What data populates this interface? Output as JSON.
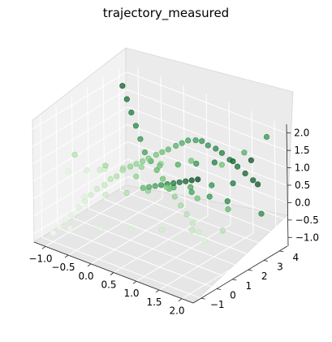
{
  "chart_data": {
    "type": "scatter3d",
    "title": "trajectory_measured",
    "xlabel": "",
    "ylabel": "",
    "zlabel": "",
    "xlim": [
      -1.25,
      2.25
    ],
    "ylim": [
      -1.5,
      4.5
    ],
    "zlim": [
      -1.25,
      2.25
    ],
    "x_ticks": [
      "−1.0",
      "−0.5",
      "0.0",
      "0.5",
      "1.0",
      "1.5",
      "2.0"
    ],
    "y_ticks": [
      "−1",
      "0",
      "1",
      "2",
      "3",
      "4"
    ],
    "z_ticks": [
      "−1.0",
      "−0.5",
      "0.0",
      "0.5",
      "1.0",
      "1.5",
      "2.0"
    ],
    "colormap": [
      "#f7fcf5",
      "#c7e9c0",
      "#74c476",
      "#238b45",
      "#00441b"
    ],
    "grid": true,
    "points": [
      [
        -1.0,
        -1.0,
        -1.0,
        0.02
      ],
      [
        -0.9,
        -0.9,
        -0.8,
        0.05
      ],
      [
        -0.8,
        -0.8,
        -0.6,
        0.08
      ],
      [
        -0.7,
        -0.7,
        -0.4,
        0.1
      ],
      [
        -0.6,
        -0.5,
        -0.2,
        0.13
      ],
      [
        -0.5,
        -0.4,
        0.0,
        0.16
      ],
      [
        -0.4,
        -0.3,
        0.2,
        0.19
      ],
      [
        -0.3,
        -0.2,
        0.4,
        0.22
      ],
      [
        -0.2,
        0.0,
        0.5,
        0.25
      ],
      [
        -0.1,
        0.1,
        0.7,
        0.28
      ],
      [
        0.0,
        0.2,
        0.8,
        0.31
      ],
      [
        0.1,
        0.3,
        1.0,
        0.34
      ],
      [
        0.2,
        0.5,
        1.1,
        0.37
      ],
      [
        0.3,
        0.6,
        1.2,
        0.4
      ],
      [
        0.4,
        0.7,
        1.3,
        0.43
      ],
      [
        0.5,
        0.8,
        1.4,
        0.46
      ],
      [
        0.6,
        1.0,
        1.5,
        0.49
      ],
      [
        0.7,
        1.1,
        1.6,
        0.52
      ],
      [
        0.8,
        1.2,
        1.7,
        0.55
      ],
      [
        0.9,
        1.4,
        1.8,
        0.58
      ],
      [
        1.0,
        1.5,
        1.9,
        0.61
      ],
      [
        1.1,
        1.6,
        2.0,
        0.64
      ],
      [
        1.2,
        1.8,
        2.0,
        0.67
      ],
      [
        1.3,
        1.9,
        2.0,
        0.7
      ],
      [
        1.4,
        2.0,
        1.9,
        0.73
      ],
      [
        1.5,
        2.2,
        1.8,
        0.76
      ],
      [
        1.6,
        2.3,
        1.7,
        0.79
      ],
      [
        1.7,
        2.5,
        1.5,
        0.82
      ],
      [
        1.8,
        2.7,
        1.3,
        0.85
      ],
      [
        1.9,
        2.9,
        1.1,
        0.88
      ],
      [
        2.0,
        3.1,
        0.9,
        0.91
      ],
      [
        2.0,
        3.4,
        0.7,
        0.94
      ],
      [
        -1.0,
        3.5,
        2.0,
        0.9
      ],
      [
        -0.8,
        3.2,
        1.8,
        0.85
      ],
      [
        -0.6,
        2.9,
        1.6,
        0.8
      ],
      [
        -0.4,
        2.6,
        1.4,
        0.75
      ],
      [
        -0.2,
        2.3,
        1.2,
        0.7
      ],
      [
        0.0,
        2.0,
        1.0,
        0.65
      ],
      [
        0.2,
        1.8,
        0.9,
        0.6
      ],
      [
        0.4,
        1.6,
        0.8,
        0.55
      ],
      [
        0.6,
        1.4,
        0.7,
        0.5
      ],
      [
        0.8,
        1.2,
        0.6,
        0.45
      ],
      [
        1.0,
        1.0,
        0.5,
        0.4
      ],
      [
        1.2,
        0.8,
        0.4,
        0.35
      ],
      [
        1.4,
        0.6,
        0.3,
        0.3
      ],
      [
        1.6,
        0.4,
        0.2,
        0.25
      ],
      [
        1.8,
        0.2,
        0.1,
        0.2
      ],
      [
        2.0,
        0.0,
        0.0,
        0.15
      ],
      [
        -1.0,
        0.0,
        0.5,
        0.1
      ],
      [
        -0.7,
        0.3,
        0.6,
        0.15
      ],
      [
        -0.4,
        0.6,
        0.7,
        0.2
      ],
      [
        -0.1,
        0.9,
        0.8,
        0.3
      ],
      [
        0.2,
        1.2,
        0.9,
        0.4
      ],
      [
        0.5,
        1.5,
        1.0,
        0.5
      ],
      [
        0.8,
        1.8,
        1.1,
        0.6
      ],
      [
        1.1,
        2.1,
        1.2,
        0.7
      ],
      [
        1.4,
        2.4,
        1.3,
        0.8
      ],
      [
        1.7,
        2.7,
        1.4,
        0.9
      ],
      [
        2.0,
        3.0,
        1.5,
        0.95
      ],
      [
        -1.0,
        1.0,
        -0.5,
        0.12
      ],
      [
        -0.6,
        1.2,
        -0.3,
        0.22
      ],
      [
        -0.2,
        1.4,
        -0.1,
        0.32
      ],
      [
        0.2,
        1.6,
        0.1,
        0.42
      ],
      [
        0.6,
        1.8,
        0.3,
        0.52
      ],
      [
        1.0,
        2.0,
        0.5,
        0.62
      ],
      [
        1.4,
        2.2,
        0.7,
        0.72
      ],
      [
        1.8,
        2.4,
        0.9,
        0.82
      ],
      [
        -0.5,
        -1.0,
        1.5,
        0.3
      ],
      [
        0.0,
        -0.5,
        1.3,
        0.35
      ],
      [
        0.5,
        0.0,
        1.1,
        0.4
      ],
      [
        1.0,
        0.5,
        0.9,
        0.45
      ],
      [
        1.5,
        1.0,
        0.7,
        0.5
      ],
      [
        2.0,
        1.5,
        0.5,
        0.55
      ],
      [
        0.0,
        3.8,
        -0.5,
        0.6
      ],
      [
        0.5,
        3.5,
        -0.3,
        0.65
      ],
      [
        1.0,
        3.2,
        -0.1,
        0.7
      ],
      [
        1.5,
        2.9,
        0.1,
        0.75
      ],
      [
        -1.0,
        2.0,
        0.0,
        0.2
      ],
      [
        -0.5,
        2.5,
        0.2,
        0.3
      ],
      [
        0.0,
        3.0,
        0.4,
        0.4
      ],
      [
        0.5,
        3.5,
        0.6,
        0.5
      ],
      [
        0.3,
        1.0,
        0.4,
        0.55
      ],
      [
        0.4,
        1.1,
        0.45,
        0.6
      ],
      [
        0.5,
        1.2,
        0.5,
        0.65
      ],
      [
        0.6,
        1.3,
        0.55,
        0.7
      ],
      [
        0.7,
        1.4,
        0.6,
        0.75
      ],
      [
        0.8,
        1.5,
        0.65,
        0.8
      ],
      [
        0.9,
        1.6,
        0.7,
        0.85
      ],
      [
        1.0,
        1.7,
        0.75,
        0.9
      ],
      [
        1.1,
        1.8,
        0.8,
        0.95
      ],
      [
        1.2,
        1.9,
        0.85,
        1.0
      ],
      [
        -0.8,
        -0.5,
        -0.9,
        0.05
      ],
      [
        -0.3,
        0.0,
        -0.8,
        0.1
      ],
      [
        0.2,
        0.5,
        -0.7,
        0.15
      ],
      [
        0.7,
        1.0,
        -0.6,
        0.2
      ],
      [
        1.2,
        1.5,
        -0.5,
        0.25
      ],
      [
        1.7,
        2.0,
        -0.4,
        0.3
      ],
      [
        2.0,
        4.0,
        1.9,
        0.7
      ],
      [
        1.5,
        4.0,
        1.2,
        0.6
      ],
      [
        1.0,
        4.0,
        0.6,
        0.5
      ],
      [
        2.0,
        3.6,
        -0.2,
        0.75
      ]
    ]
  }
}
